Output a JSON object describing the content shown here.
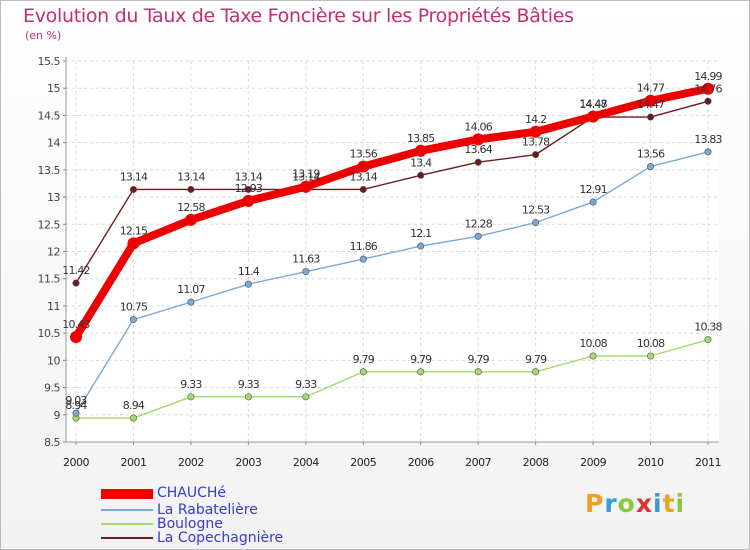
{
  "title": "Evolution du Taux de Taxe Foncière sur les Propriétés Bâties",
  "unit": "(en %)",
  "chart_data": {
    "type": "line",
    "title": "Evolution du Taux de Taxe Foncière sur les Propriétés Bâties",
    "ylabel": "(en %)",
    "xlabel": "",
    "ylim": [
      8.5,
      15.5
    ],
    "yticks": [
      8.5,
      9,
      9.5,
      10,
      10.5,
      11,
      11.5,
      12,
      12.5,
      13,
      13.5,
      14,
      14.5,
      15,
      15.5
    ],
    "categories": [
      "2000",
      "2001",
      "2002",
      "2003",
      "2004",
      "2005",
      "2006",
      "2007",
      "2008",
      "2009",
      "2010",
      "2011"
    ],
    "grid": true,
    "series": [
      {
        "name": "La Copechagnière",
        "color": "#6b1a1f",
        "values": [
          11.42,
          13.14,
          13.14,
          13.14,
          13.14,
          13.14,
          13.4,
          13.64,
          13.78,
          14.47,
          14.47,
          14.76
        ],
        "labels": [
          "11.42",
          "13.14",
          "13.14",
          "13.14",
          "13.14",
          "13.14",
          "13.4",
          "13.64",
          "13.78",
          "14.47",
          "14.47",
          "14.76"
        ]
      },
      {
        "name": "Boulogne",
        "color": "#a6d86e",
        "values": [
          8.94,
          8.94,
          9.33,
          9.33,
          9.33,
          9.79,
          9.79,
          9.79,
          9.79,
          10.08,
          10.08,
          10.38
        ],
        "labels": [
          "8.94",
          "8.94",
          "9.33",
          "9.33",
          "9.33",
          "9.79",
          "9.79",
          "9.79",
          "9.79",
          "10.08",
          "10.08",
          "10.38"
        ]
      },
      {
        "name": "La Rabatelière",
        "color": "#7aa9d6",
        "values": [
          9.03,
          10.75,
          11.07,
          11.4,
          11.63,
          11.86,
          12.1,
          12.28,
          12.53,
          12.91,
          13.56,
          13.83
        ],
        "labels": [
          "9.03",
          "10.75",
          "11.07",
          "11.4",
          "11.63",
          "11.86",
          "12.1",
          "12.28",
          "12.53",
          "12.91",
          "13.56",
          "13.83"
        ]
      },
      {
        "name": "CHAUCHé",
        "color": "#ee0000",
        "values": [
          10.43,
          12.15,
          12.58,
          12.93,
          13.19,
          13.56,
          13.85,
          14.06,
          14.2,
          14.48,
          14.77,
          14.99
        ],
        "labels": [
          "10.43",
          "12.15",
          "12.58",
          "12.93",
          "13.19",
          "13.56",
          "13.85",
          "14.06",
          "14.2",
          "14.48",
          "14.77",
          "14.99"
        ]
      }
    ]
  },
  "legend": [
    {
      "label": "CHAUCHé",
      "color": "#ee0000"
    },
    {
      "label": "La Rabatelière",
      "color": "#7aa9d6"
    },
    {
      "label": "Boulogne",
      "color": "#a6d86e"
    },
    {
      "label": "La Copechagnière",
      "color": "#6b1a1f"
    }
  ],
  "legend_text_color": "#3a3ad0",
  "logo": {
    "letters": [
      "P",
      "r",
      "o",
      "x",
      "i",
      "t",
      "i"
    ],
    "colors": [
      "#f0a020",
      "#3a9ad8",
      "#8ac840",
      "#e03030",
      "#3a9ad8",
      "#f0a020",
      "#8ac840"
    ]
  }
}
